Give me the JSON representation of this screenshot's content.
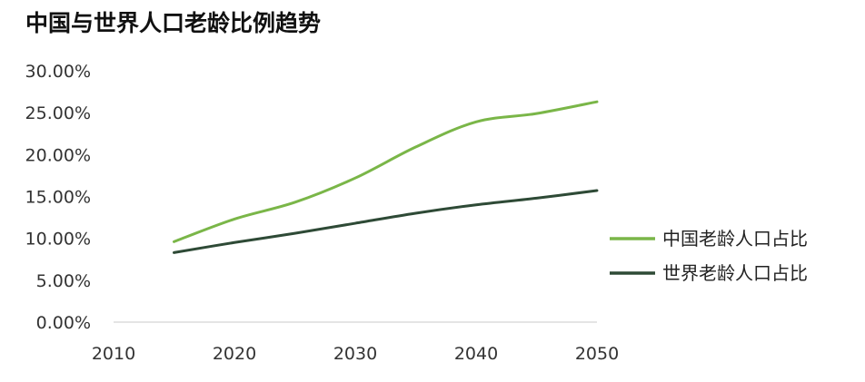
{
  "chart_data": {
    "type": "line",
    "title": "中国与世界人口老龄比例趋势",
    "xlabel": "",
    "ylabel": "",
    "xlim": [
      2010,
      2050
    ],
    "ylim": [
      0,
      30
    ],
    "x_ticks": [
      "2010",
      "2020",
      "2030",
      "2040",
      "2050"
    ],
    "y_ticks": [
      "0.00%",
      "5.00%",
      "10.00%",
      "15.00%",
      "20.00%",
      "25.00%",
      "30.00%"
    ],
    "grid": false,
    "legend_position": "right",
    "x": [
      2015,
      2020,
      2025,
      2030,
      2035,
      2040,
      2045,
      2050
    ],
    "series": [
      {
        "name": "中国老龄人口占比",
        "color": "#7ab648",
        "values": [
          9.6,
          12.3,
          14.3,
          17.2,
          20.9,
          23.9,
          24.9,
          26.3
        ]
      },
      {
        "name": "世界老龄人口占比",
        "color": "#2e4a36",
        "values": [
          8.3,
          9.5,
          10.6,
          11.8,
          13.0,
          14.0,
          14.8,
          15.7
        ]
      }
    ]
  }
}
